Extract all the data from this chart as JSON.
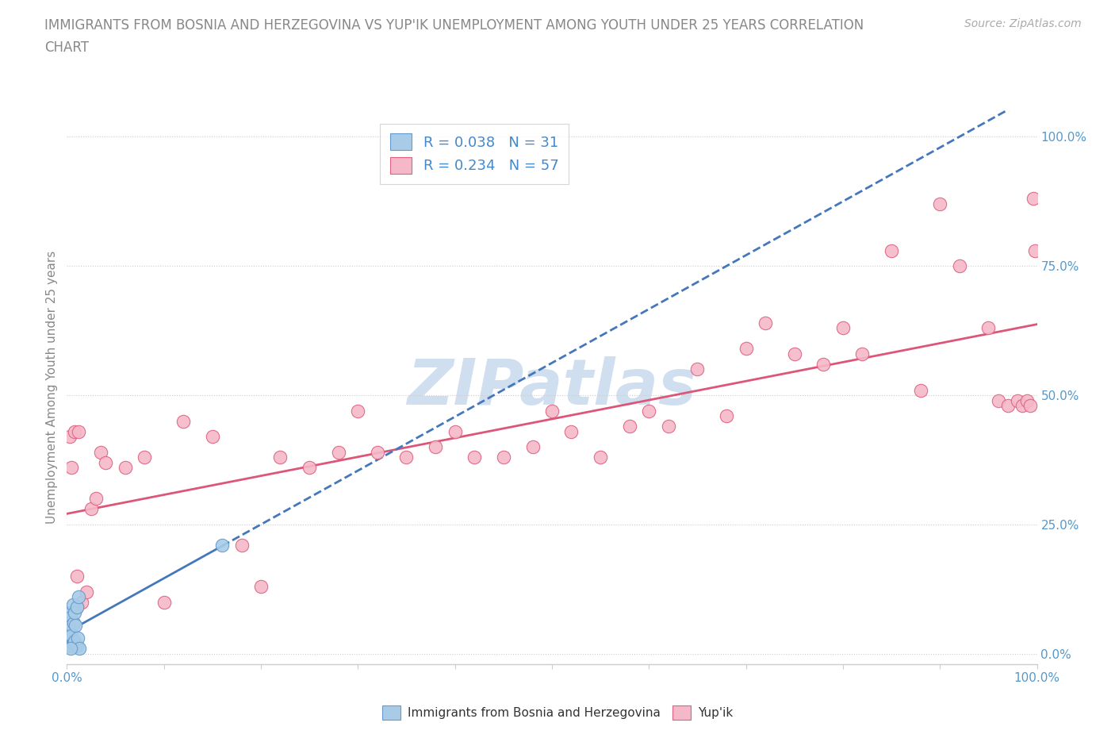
{
  "title_line1": "IMMIGRANTS FROM BOSNIA AND HERZEGOVINA VS YUP'IK UNEMPLOYMENT AMONG YOUTH UNDER 25 YEARS CORRELATION",
  "title_line2": "CHART",
  "source_text": "Source: ZipAtlas.com",
  "ylabel": "Unemployment Among Youth under 25 years",
  "R_blue": 0.038,
  "N_blue": 31,
  "R_pink": 0.234,
  "N_pink": 57,
  "blue_color": "#a8cce8",
  "blue_edge_color": "#6699cc",
  "pink_color": "#f5b8c8",
  "pink_edge_color": "#e06080",
  "blue_line_color": "#4477bb",
  "pink_line_color": "#dd5577",
  "watermark_color": "#d0dff0",
  "axis_tick_color": "#5599cc",
  "grid_color": "#cccccc",
  "title_color": "#888888",
  "source_color": "#aaaaaa",
  "ylabel_color": "#888888",
  "legend_label_color": "#4488cc",
  "background_color": "#ffffff",
  "title_fontsize": 12,
  "blue_scatter_x": [
    0.001,
    0.001,
    0.002,
    0.002,
    0.002,
    0.002,
    0.002,
    0.003,
    0.003,
    0.003,
    0.003,
    0.003,
    0.004,
    0.004,
    0.005,
    0.005,
    0.005,
    0.006,
    0.006,
    0.007,
    0.007,
    0.008,
    0.008,
    0.009,
    0.01,
    0.01,
    0.011,
    0.012,
    0.013,
    0.16,
    0.004
  ],
  "blue_scatter_y": [
    0.055,
    0.045,
    0.065,
    0.075,
    0.05,
    0.04,
    0.03,
    0.06,
    0.05,
    0.04,
    0.025,
    0.015,
    0.08,
    0.07,
    0.055,
    0.035,
    0.015,
    0.095,
    0.02,
    0.06,
    0.02,
    0.08,
    0.025,
    0.055,
    0.09,
    0.015,
    0.03,
    0.11,
    0.01,
    0.21,
    0.01
  ],
  "pink_scatter_x": [
    0.003,
    0.005,
    0.008,
    0.01,
    0.012,
    0.015,
    0.02,
    0.025,
    0.03,
    0.035,
    0.04,
    0.06,
    0.08,
    0.1,
    0.12,
    0.15,
    0.18,
    0.2,
    0.22,
    0.25,
    0.28,
    0.3,
    0.32,
    0.35,
    0.38,
    0.4,
    0.42,
    0.45,
    0.48,
    0.5,
    0.52,
    0.55,
    0.58,
    0.6,
    0.62,
    0.65,
    0.68,
    0.7,
    0.72,
    0.75,
    0.78,
    0.8,
    0.82,
    0.85,
    0.88,
    0.9,
    0.92,
    0.95,
    0.96,
    0.97,
    0.98,
    0.985,
    0.99,
    0.993,
    0.996,
    0.998,
    0.01
  ],
  "pink_scatter_y": [
    0.42,
    0.36,
    0.43,
    0.15,
    0.43,
    0.1,
    0.12,
    0.28,
    0.3,
    0.39,
    0.37,
    0.36,
    0.38,
    0.1,
    0.45,
    0.42,
    0.21,
    0.13,
    0.38,
    0.36,
    0.39,
    0.47,
    0.39,
    0.38,
    0.4,
    0.43,
    0.38,
    0.38,
    0.4,
    0.47,
    0.43,
    0.38,
    0.44,
    0.47,
    0.44,
    0.55,
    0.46,
    0.59,
    0.64,
    0.58,
    0.56,
    0.63,
    0.58,
    0.78,
    0.51,
    0.87,
    0.75,
    0.63,
    0.49,
    0.48,
    0.49,
    0.48,
    0.49,
    0.48,
    0.88,
    0.78,
    0.09
  ],
  "xlim": [
    0.0,
    1.0
  ],
  "ylim": [
    -0.02,
    1.05
  ],
  "ytick_values": [
    0.0,
    0.25,
    0.5,
    0.75,
    1.0
  ],
  "ytick_labels": [
    "0.0%",
    "25.0%",
    "50.0%",
    "75.0%",
    "100.0%"
  ]
}
